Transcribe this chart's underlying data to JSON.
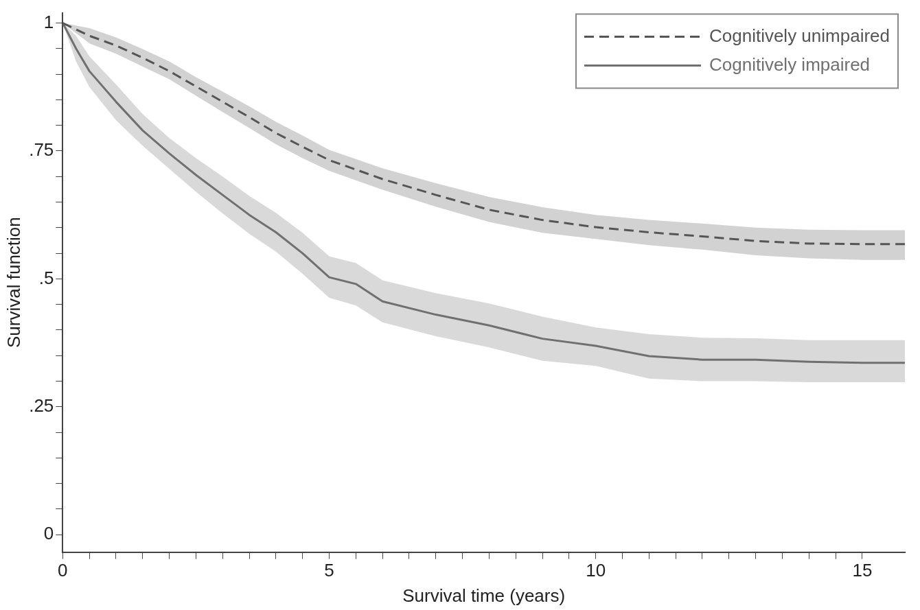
{
  "chart_data": {
    "type": "line",
    "xlabel": "Survival time (years)",
    "ylabel": "Survival function",
    "xlim": [
      0,
      15.8
    ],
    "ylim": [
      -0.034,
      1.02
    ],
    "xticks": [
      0,
      {
        "value": 0.5,
        "label": null
      },
      {
        "value": 1,
        "label": null
      },
      {
        "value": 1.5,
        "label": null
      },
      {
        "value": 2,
        "label": null
      },
      {
        "value": 2.5,
        "label": null
      },
      {
        "value": 3,
        "label": null
      },
      {
        "value": 3.5,
        "label": null
      },
      {
        "value": 4,
        "label": null
      },
      {
        "value": 4.5,
        "label": null
      },
      5,
      {
        "value": 5.5,
        "label": null
      },
      {
        "value": 6,
        "label": null
      },
      {
        "value": 6.5,
        "label": null
      },
      {
        "value": 7,
        "label": null
      },
      {
        "value": 7.5,
        "label": null
      },
      {
        "value": 8,
        "label": null
      },
      {
        "value": 8.5,
        "label": null
      },
      {
        "value": 9,
        "label": null
      },
      {
        "value": 9.5,
        "label": null
      },
      10,
      {
        "value": 10.5,
        "label": null
      },
      {
        "value": 11,
        "label": null
      },
      {
        "value": 11.5,
        "label": null
      },
      {
        "value": 12,
        "label": null
      },
      {
        "value": 12.5,
        "label": null
      },
      {
        "value": 13,
        "label": null
      },
      {
        "value": 13.5,
        "label": null
      },
      {
        "value": 14,
        "label": null
      },
      {
        "value": 14.5,
        "label": null
      },
      15
    ],
    "yticks": [
      {
        "value": 0,
        "label": "0"
      },
      {
        "value": 0.05,
        "label": null
      },
      {
        "value": 0.1,
        "label": null
      },
      {
        "value": 0.15,
        "label": null
      },
      {
        "value": 0.2,
        "label": null
      },
      {
        "value": 0.25,
        "label": ".25"
      },
      {
        "value": 0.3,
        "label": null
      },
      {
        "value": 0.35,
        "label": null
      },
      {
        "value": 0.4,
        "label": null
      },
      {
        "value": 0.45,
        "label": null
      },
      {
        "value": 0.5,
        "label": ".5"
      },
      {
        "value": 0.55,
        "label": null
      },
      {
        "value": 0.6,
        "label": null
      },
      {
        "value": 0.65,
        "label": null
      },
      {
        "value": 0.7,
        "label": null
      },
      {
        "value": 0.75,
        "label": ".75"
      },
      {
        "value": 0.8,
        "label": null
      },
      {
        "value": 0.85,
        "label": null
      },
      {
        "value": 0.9,
        "label": null
      },
      {
        "value": 0.95,
        "label": null
      },
      {
        "value": 1,
        "label": "1"
      }
    ],
    "grid": false,
    "legend": "top right",
    "series": [
      {
        "name": "Cognitively unimpaired",
        "color": "#555555",
        "line_style": "dashed",
        "x": [
          0,
          0.5,
          1,
          1.5,
          2,
          2.5,
          3,
          3.5,
          4,
          4.5,
          5,
          6,
          7,
          8,
          9,
          10,
          11,
          12,
          13,
          14,
          15,
          15.8
        ],
        "values": [
          1,
          0.975,
          0.956,
          0.932,
          0.906,
          0.876,
          0.846,
          0.816,
          0.785,
          0.758,
          0.732,
          0.695,
          0.664,
          0.635,
          0.615,
          0.601,
          0.591,
          0.583,
          0.574,
          0.569,
          0.568,
          0.568
        ],
        "lower": [
          1,
          0.96,
          0.94,
          0.915,
          0.89,
          0.858,
          0.826,
          0.795,
          0.763,
          0.736,
          0.711,
          0.674,
          0.641,
          0.611,
          0.59,
          0.578,
          0.566,
          0.557,
          0.546,
          0.54,
          0.537,
          0.537
        ],
        "upper": [
          1,
          0.99,
          0.972,
          0.949,
          0.925,
          0.894,
          0.866,
          0.837,
          0.807,
          0.78,
          0.752,
          0.716,
          0.687,
          0.66,
          0.64,
          0.625,
          0.615,
          0.608,
          0.6,
          0.596,
          0.595,
          0.595
        ]
      },
      {
        "name": "Cognitively impaired",
        "color": "#707070",
        "line_style": "solid",
        "x": [
          0,
          0.25,
          0.5,
          1,
          1.5,
          2,
          2.5,
          3,
          3.5,
          4,
          4.5,
          5,
          5.5,
          6,
          7,
          8,
          9,
          10,
          11,
          12,
          13,
          14,
          15,
          15.8
        ],
        "values": [
          1,
          0.95,
          0.906,
          0.846,
          0.79,
          0.745,
          0.703,
          0.664,
          0.625,
          0.591,
          0.55,
          0.503,
          0.49,
          0.456,
          0.43,
          0.409,
          0.383,
          0.369,
          0.349,
          0.342,
          0.342,
          0.338,
          0.336,
          0.336
        ],
        "lower": [
          1,
          0.925,
          0.875,
          0.81,
          0.76,
          0.715,
          0.67,
          0.628,
          0.588,
          0.553,
          0.51,
          0.463,
          0.448,
          0.415,
          0.388,
          0.366,
          0.34,
          0.33,
          0.305,
          0.3,
          0.3,
          0.298,
          0.298,
          0.298
        ],
        "upper": [
          1,
          0.975,
          0.935,
          0.88,
          0.822,
          0.775,
          0.736,
          0.7,
          0.662,
          0.629,
          0.59,
          0.544,
          0.531,
          0.497,
          0.472,
          0.452,
          0.426,
          0.405,
          0.392,
          0.385,
          0.384,
          0.38,
          0.38,
          0.38
        ]
      }
    ]
  }
}
